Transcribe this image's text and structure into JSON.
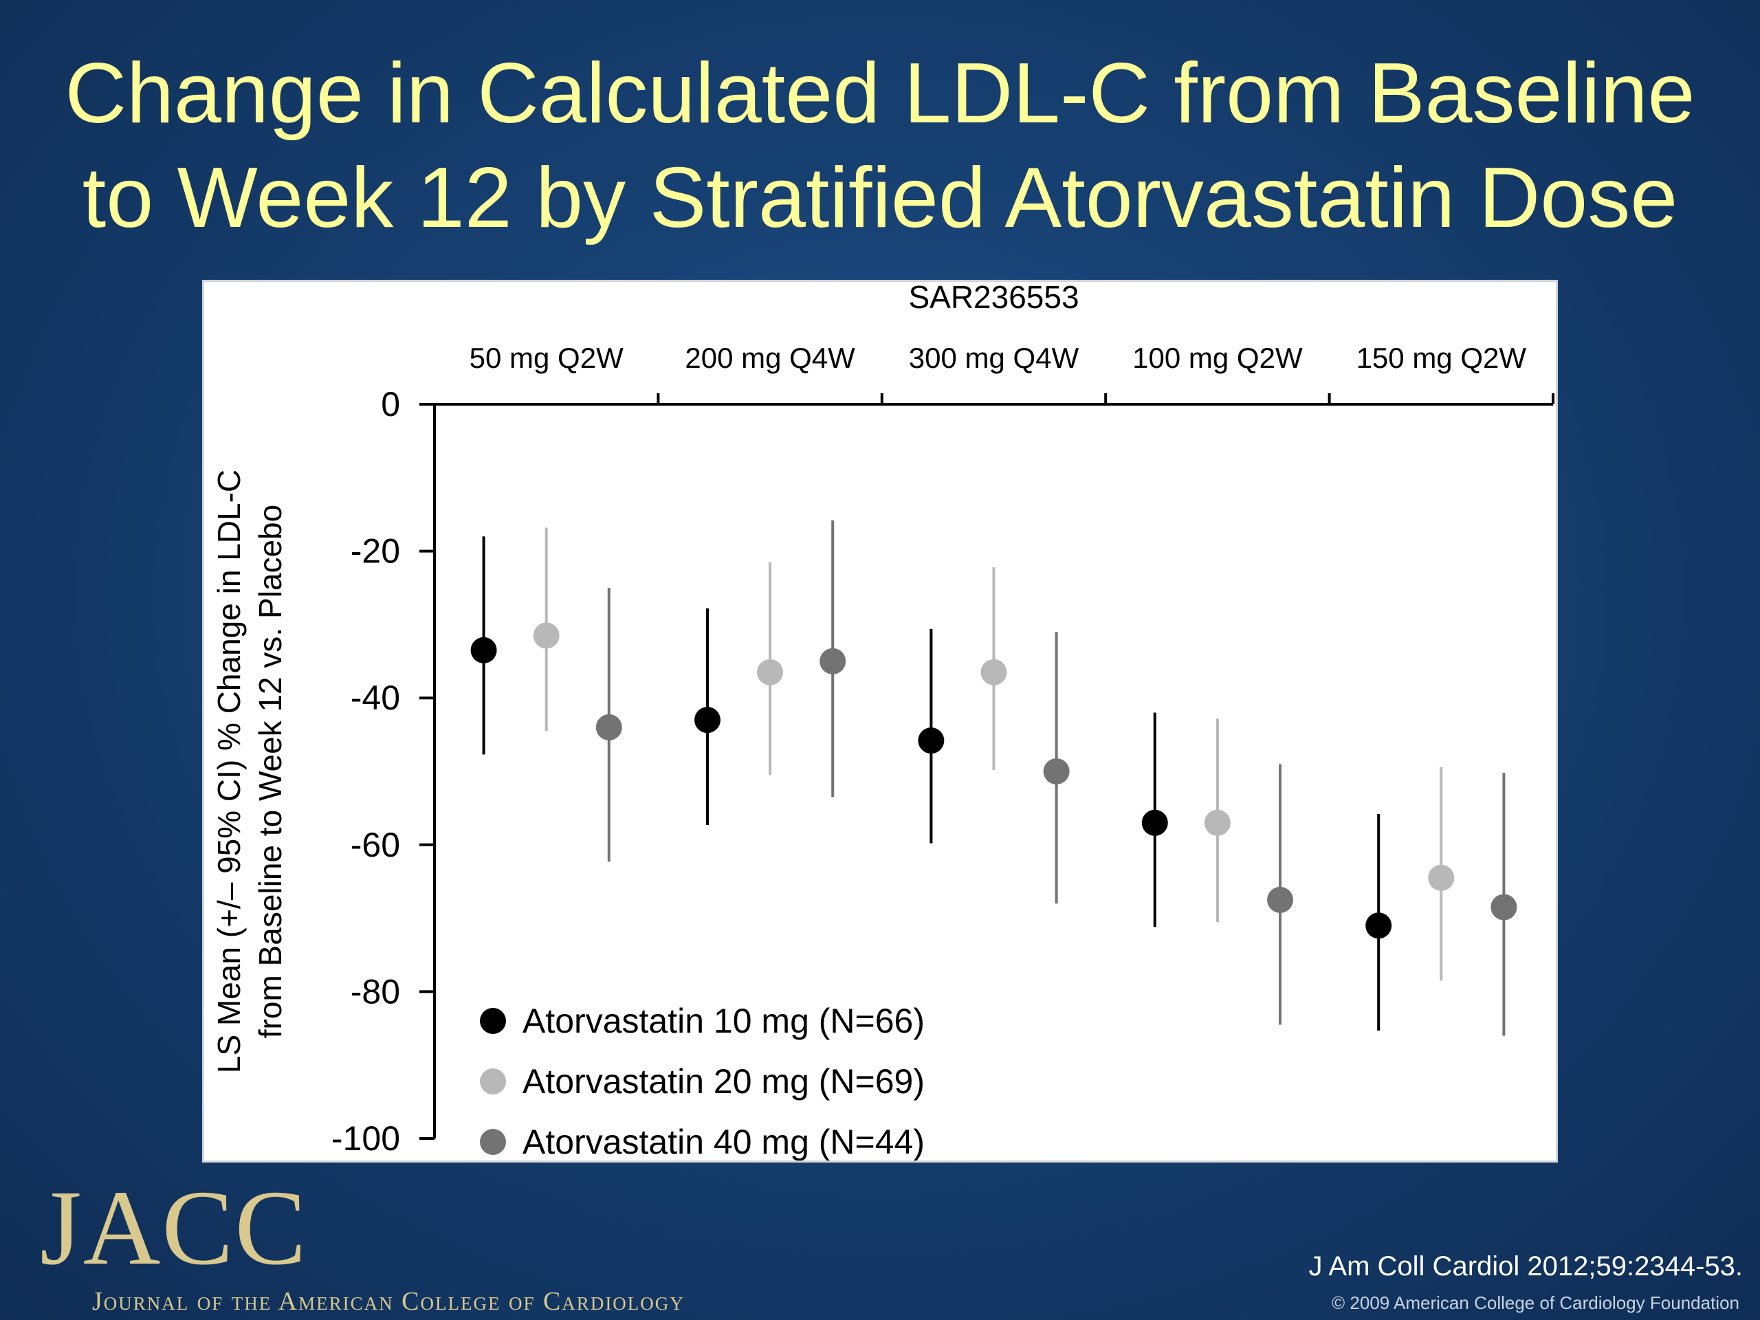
{
  "slide": {
    "title_line1": "Change in Calculated LDL-C from Baseline",
    "title_line2": "to Week 12 by Stratified Atorvastatin Dose",
    "title_color": "#ffff99"
  },
  "footer": {
    "logo_text": "JACC",
    "logo_subtitle": "Journal of the American College of Cardiology",
    "citation": "J Am Coll Cardiol 2012;59:2344-53.",
    "copyright": "© 2009 American College of Cardiology Foundation"
  },
  "chart_data": {
    "type": "scatter",
    "subtype": "dot-with-error-bars",
    "top_label": "SAR236553",
    "categories": [
      "50 mg Q2W",
      "200 mg Q4W",
      "300 mg Q4W",
      "100 mg Q2W",
      "150 mg Q2W"
    ],
    "ylabel_line1": "LS Mean (+/– 95% CI) % Change in LDL-C",
    "ylabel_line2": "from Baseline to Week 12 vs. Placebo",
    "ylim": [
      -100,
      0
    ],
    "yticks": [
      0,
      -20,
      -40,
      -60,
      -80,
      -100
    ],
    "grid": false,
    "legend_position": "bottom-left",
    "series": [
      {
        "name": "Atorvastatin 10 mg (N=66)",
        "color": "#000000",
        "values": [
          -33.5,
          -43,
          -45.8,
          -57,
          -71
        ],
        "ci_low": [
          -47.7,
          -57.3,
          -59.8,
          -71.2,
          -85.3
        ],
        "ci_high": [
          -18,
          -27.8,
          -30.6,
          -42,
          -55.8
        ]
      },
      {
        "name": "Atorvastatin 20 mg (N=69)",
        "color": "#b8b8b8",
        "values": [
          -31.5,
          -36.5,
          -36.5,
          -57,
          -64.5
        ],
        "ci_low": [
          -44.5,
          -50.5,
          -49.8,
          -70.5,
          -78.5
        ],
        "ci_high": [
          -16.8,
          -21.5,
          -22.2,
          -42.8,
          -49.4
        ]
      },
      {
        "name": "Atorvastatin 40 mg (N=44)",
        "color": "#737373",
        "values": [
          -44,
          -35,
          -50,
          -67.5,
          -68.5
        ],
        "ci_low": [
          -62.3,
          -53.5,
          -68,
          -84.5,
          -86
        ],
        "ci_high": [
          -25,
          -15.8,
          -31,
          -49,
          -50.2
        ]
      }
    ]
  }
}
